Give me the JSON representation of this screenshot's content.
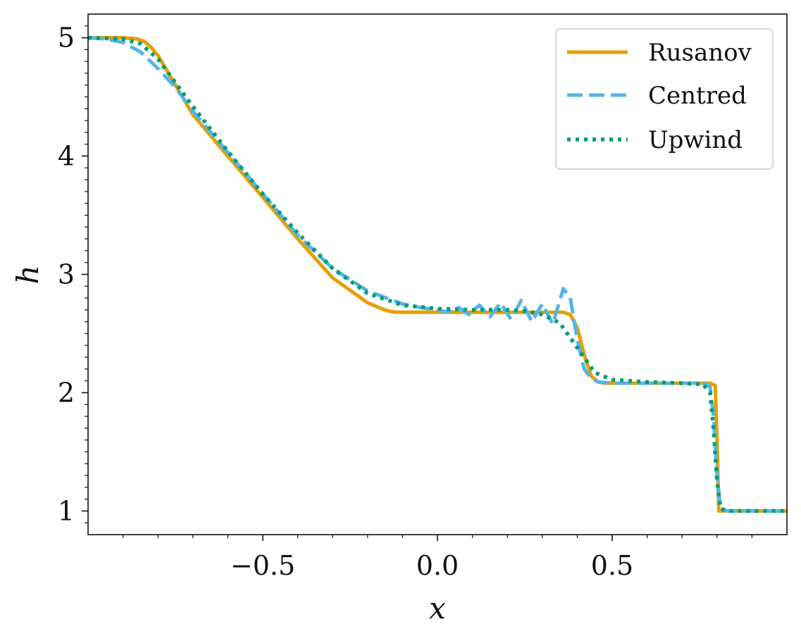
{
  "chart_data": {
    "type": "line",
    "xlabel": "x",
    "ylabel": "h",
    "xlim": [
      -1.0,
      1.0
    ],
    "ylim": [
      0.8,
      5.2
    ],
    "xticks": [
      -0.5,
      0.0,
      0.5
    ],
    "xtick_labels": [
      "−0.5",
      "0.0",
      "0.5"
    ],
    "yticks": [
      1,
      2,
      3,
      4,
      5
    ],
    "ytick_labels": [
      "1",
      "2",
      "3",
      "4",
      "5"
    ],
    "grid": false,
    "legend_position": "top-right",
    "series": [
      {
        "name": "Rusanov",
        "color": "#E69F00",
        "style": "solid",
        "x": [
          -1.0,
          -0.9,
          -0.86,
          -0.84,
          -0.82,
          -0.8,
          -0.75,
          -0.7,
          -0.6,
          -0.5,
          -0.4,
          -0.3,
          -0.2,
          -0.16,
          -0.14,
          -0.12,
          -0.1,
          0.0,
          0.1,
          0.2,
          0.3,
          0.36,
          0.38,
          0.4,
          0.42,
          0.44,
          0.46,
          0.48,
          0.5,
          0.6,
          0.7,
          0.78,
          0.795,
          0.8,
          0.805,
          0.82,
          0.9,
          1.0
        ],
        "y": [
          5.0,
          5.0,
          4.99,
          4.97,
          4.92,
          4.85,
          4.6,
          4.35,
          4.0,
          3.65,
          3.3,
          2.97,
          2.76,
          2.71,
          2.69,
          2.68,
          2.68,
          2.68,
          2.68,
          2.68,
          2.68,
          2.68,
          2.66,
          2.55,
          2.32,
          2.14,
          2.09,
          2.08,
          2.08,
          2.08,
          2.08,
          2.08,
          2.06,
          1.6,
          1.0,
          1.0,
          1.0,
          1.0
        ]
      },
      {
        "name": "Centred",
        "color": "#56B4E9",
        "style": "dashed",
        "x": [
          -1.0,
          -0.95,
          -0.9,
          -0.85,
          -0.8,
          -0.75,
          -0.7,
          -0.6,
          -0.5,
          -0.4,
          -0.3,
          -0.2,
          -0.1,
          -0.05,
          0.0,
          0.03,
          0.06,
          0.09,
          0.12,
          0.15,
          0.18,
          0.21,
          0.24,
          0.27,
          0.3,
          0.33,
          0.36,
          0.38,
          0.4,
          0.42,
          0.44,
          0.46,
          0.5,
          0.6,
          0.7,
          0.76,
          0.78,
          0.79,
          0.8,
          0.81,
          0.83,
          0.9,
          1.0
        ],
        "y": [
          5.0,
          4.99,
          4.96,
          4.88,
          4.74,
          4.58,
          4.38,
          4.03,
          3.68,
          3.33,
          3.05,
          2.86,
          2.75,
          2.72,
          2.7,
          2.68,
          2.72,
          2.66,
          2.74,
          2.64,
          2.76,
          2.62,
          2.78,
          2.6,
          2.75,
          2.58,
          2.88,
          2.8,
          2.45,
          2.2,
          2.12,
          2.09,
          2.08,
          2.08,
          2.08,
          2.08,
          2.05,
          1.8,
          1.3,
          1.02,
          1.0,
          1.0,
          1.0
        ]
      },
      {
        "name": "Upwind",
        "color": "#009E73",
        "style": "dotted",
        "x": [
          -1.0,
          -0.9,
          -0.85,
          -0.8,
          -0.75,
          -0.7,
          -0.6,
          -0.5,
          -0.4,
          -0.3,
          -0.2,
          -0.1,
          0.0,
          0.1,
          0.2,
          0.25,
          0.3,
          0.35,
          0.4,
          0.45,
          0.5,
          0.6,
          0.7,
          0.76,
          0.78,
          0.79,
          0.8,
          0.81,
          0.83,
          0.9,
          1.0
        ],
        "y": [
          5.0,
          4.99,
          4.95,
          4.82,
          4.62,
          4.42,
          4.04,
          3.68,
          3.35,
          3.05,
          2.84,
          2.74,
          2.71,
          2.7,
          2.7,
          2.69,
          2.66,
          2.59,
          2.38,
          2.17,
          2.11,
          2.09,
          2.08,
          2.07,
          2.0,
          1.7,
          1.25,
          1.02,
          1.0,
          1.0,
          1.0
        ]
      }
    ]
  }
}
